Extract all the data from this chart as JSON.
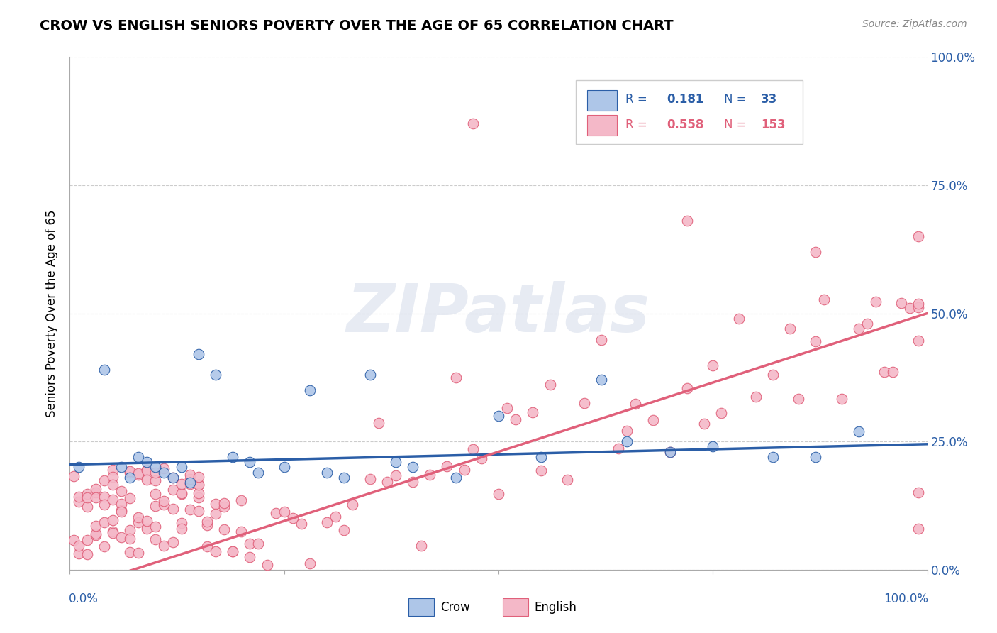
{
  "title": "CROW VS ENGLISH SENIORS POVERTY OVER THE AGE OF 65 CORRELATION CHART",
  "source": "Source: ZipAtlas.com",
  "ylabel": "Seniors Poverty Over the Age of 65",
  "crow_color": "#aec6e8",
  "crow_line_color": "#2b5ea7",
  "english_color": "#f4b8c8",
  "english_line_color": "#e0607a",
  "crow_R": 0.181,
  "crow_N": 33,
  "english_R": 0.558,
  "english_N": 153,
  "background_color": "#ffffff",
  "grid_color": "#cccccc",
  "watermark": "ZIPatlas",
  "ytick_values": [
    0.0,
    0.25,
    0.5,
    0.75,
    1.0
  ],
  "ytick_labels": [
    "0.0%",
    "25.0%",
    "50.0%",
    "75.0%",
    "100.0%"
  ]
}
